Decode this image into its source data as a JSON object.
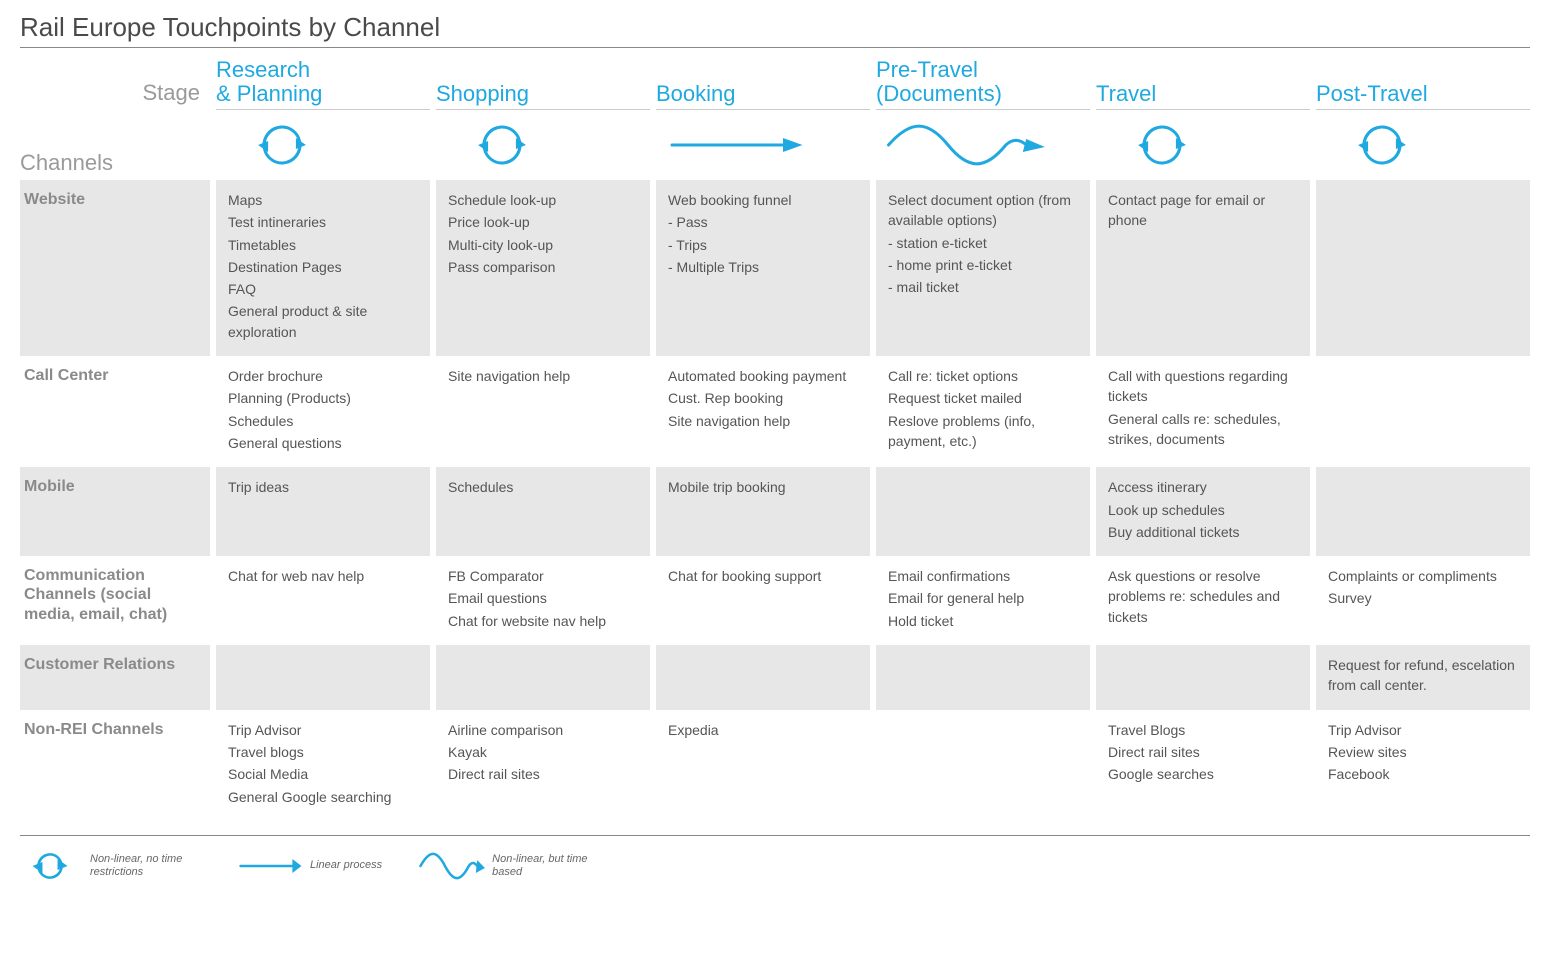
{
  "title": "Rail Europe Touchpoints by Channel",
  "colors": {
    "accent": "#1fa9e0",
    "text": "#555555",
    "muted": "#9a9a9a",
    "shaded_bg": "#e7e7e7",
    "rule": "#888888"
  },
  "axis_labels": {
    "stage": "Stage",
    "channels": "Channels"
  },
  "stages": [
    {
      "label": "Research\n& Planning",
      "icon": "cycle"
    },
    {
      "label": "Shopping",
      "icon": "cycle"
    },
    {
      "label": "Booking",
      "icon": "arrow"
    },
    {
      "label": "Pre-Travel\n(Documents)",
      "icon": "wave"
    },
    {
      "label": "Travel",
      "icon": "cycle"
    },
    {
      "label": "Post-Travel",
      "icon": "cycle"
    }
  ],
  "channels": [
    {
      "label": "Website",
      "shaded": true,
      "cells": [
        [
          "Maps",
          "Test intineraries",
          "Timetables",
          "Destination Pages",
          "FAQ",
          "General product & site exploration"
        ],
        [
          "Schedule look-up",
          "Price look-up",
          "Multi-city look-up",
          "Pass comparison"
        ],
        [
          "Web booking funnel",
          "- Pass",
          "- Trips",
          "- Multiple Trips"
        ],
        [
          "Select document option (from available options)",
          "- station e-ticket",
          "- home print e-ticket",
          "- mail ticket"
        ],
        [
          "Contact page for email or phone"
        ],
        []
      ]
    },
    {
      "label": "Call Center",
      "shaded": false,
      "cells": [
        [
          "Order brochure",
          "Planning (Products)",
          "Schedules",
          "General questions"
        ],
        [
          "Site navigation help"
        ],
        [
          "Automated booking payment",
          "Cust. Rep booking",
          "Site navigation help"
        ],
        [
          "Call re: ticket options",
          "Request ticket mailed",
          "Reslove problems (info, payment, etc.)"
        ],
        [
          "Call with questions regarding tickets",
          "General calls re: schedules, strikes, documents"
        ],
        []
      ]
    },
    {
      "label": "Mobile",
      "shaded": true,
      "cells": [
        [
          "Trip ideas"
        ],
        [
          "Schedules"
        ],
        [
          "Mobile trip booking"
        ],
        [],
        [
          "Access itinerary",
          "Look up schedules",
          "Buy additional tickets"
        ],
        []
      ]
    },
    {
      "label": "Communication Channels (social media, email, chat)",
      "shaded": false,
      "cells": [
        [
          "Chat for web nav help"
        ],
        [
          "FB Comparator",
          "Email questions",
          "Chat for website nav help"
        ],
        [
          "Chat for booking support"
        ],
        [
          "Email confirmations",
          "Email for general help",
          "Hold ticket"
        ],
        [
          "Ask questions or resolve problems re: schedules and tickets"
        ],
        [
          "Complaints or compliments",
          "Survey"
        ]
      ]
    },
    {
      "label": "Customer Relations",
      "shaded": true,
      "cells": [
        [],
        [],
        [],
        [],
        [],
        [
          "Request for refund, escelation from call center."
        ]
      ]
    },
    {
      "label": "Non-REI Channels",
      "shaded": false,
      "cells": [
        [
          "Trip Advisor",
          "Travel blogs",
          "Social Media",
          "General Google searching"
        ],
        [
          "Airline comparison",
          "Kayak",
          "Direct rail sites"
        ],
        [
          "Expedia"
        ],
        [],
        [
          "Travel Blogs",
          "Direct rail sites",
          "Google searches"
        ],
        [
          "Trip Advisor",
          "Review sites",
          "Facebook"
        ]
      ]
    }
  ],
  "legend": [
    {
      "icon": "cycle",
      "text": "Non-linear, no time restrictions"
    },
    {
      "icon": "arrow",
      "text": "Linear process"
    },
    {
      "icon": "wave",
      "text": "Non-linear, but time based"
    }
  ],
  "icon_style": {
    "stroke": "#1fa9e0",
    "stroke_width": 3
  }
}
